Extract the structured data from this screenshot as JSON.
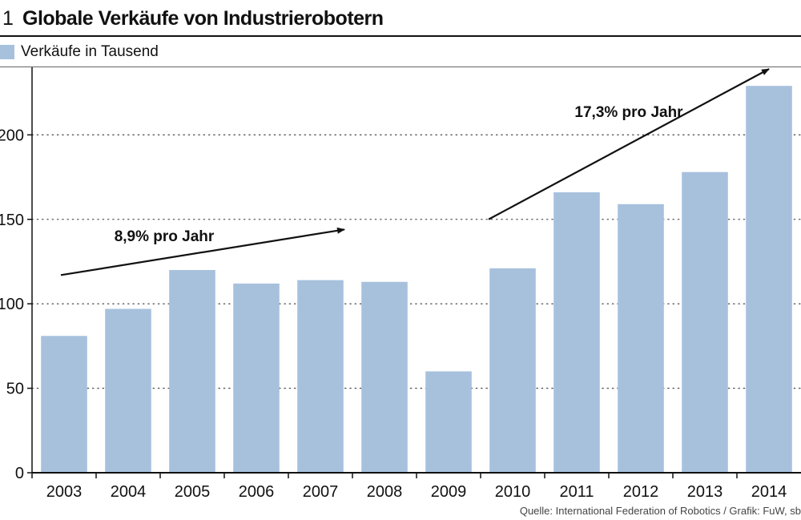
{
  "header": {
    "number": "1",
    "title": "Globale Verkäufe von Industrierobotern"
  },
  "legend": {
    "label": "Verkäufe in Tausend"
  },
  "source": "Quelle: International Federation of Robotics / Grafik: FuW, sb",
  "colors": {
    "bar": "#a7c1dd",
    "axis": "#111111",
    "grid": "#555555",
    "arrow": "#111111"
  },
  "chart_data": {
    "type": "bar",
    "categories": [
      "2003",
      "2004",
      "2005",
      "2006",
      "2007",
      "2008",
      "2009",
      "2010",
      "2011",
      "2012",
      "2013",
      "2014"
    ],
    "series": [
      {
        "name": "Verkäufe in Tausend",
        "values": [
          81,
          97,
          120,
          112,
          114,
          113,
          60,
          121,
          166,
          159,
          178,
          229
        ]
      }
    ],
    "ylim": [
      0,
      240
    ],
    "yticks": [
      0,
      50,
      100,
      150,
      200
    ],
    "grid": true,
    "grid_style": "dotted",
    "legend_position": "top-left",
    "annotations": [
      {
        "text": "8,9% pro Jahr",
        "from": {
          "x": "2003",
          "y": 117
        },
        "to": {
          "x": "2007",
          "y": 144
        }
      },
      {
        "text": "17,3% pro Jahr",
        "from": {
          "x": "2010",
          "y": 150
        },
        "to": {
          "x": "2013",
          "y": 239
        }
      }
    ]
  }
}
